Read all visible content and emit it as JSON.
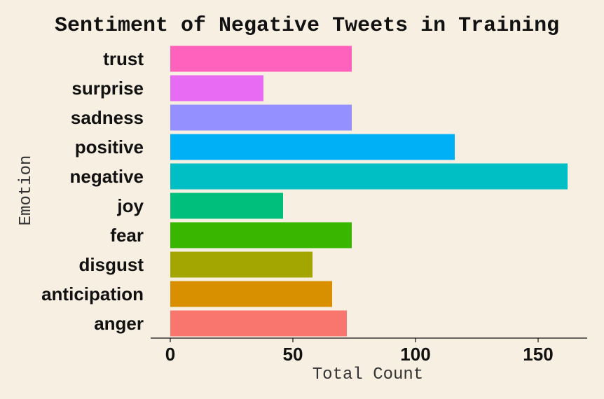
{
  "chart_data": {
    "type": "bar",
    "orientation": "horizontal",
    "title": "Sentiment of Negative Tweets in Training",
    "xlabel": "Total Count",
    "ylabel": "Emotion",
    "xlim": [
      -8,
      170
    ],
    "x_ticks": [
      0,
      50,
      100,
      150
    ],
    "x_tick_labels": [
      "0",
      "50",
      "100",
      "150"
    ],
    "grid": false,
    "legend": "none",
    "background": "#f7f0e2",
    "categories": [
      "anger",
      "anticipation",
      "disgust",
      "fear",
      "joy",
      "negative",
      "positive",
      "sadness",
      "surprise",
      "trust"
    ],
    "values": [
      72,
      66,
      58,
      74,
      46,
      162,
      116,
      74,
      38,
      74
    ],
    "colors": [
      "#f8766d",
      "#d89000",
      "#a3a500",
      "#39b600",
      "#00bf7d",
      "#00bfc4",
      "#00b0f6",
      "#9590ff",
      "#e76bf3",
      "#ff62bc"
    ]
  }
}
